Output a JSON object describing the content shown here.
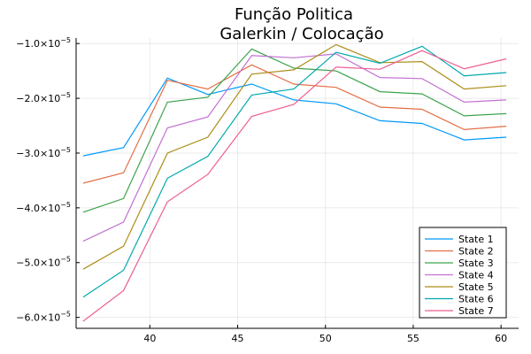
{
  "chart_data": {
    "type": "line",
    "title_lines": [
      "Função Politica",
      "Galerkin / Colocação"
    ],
    "xlabel": "",
    "ylabel": "",
    "xlim": [
      35.8,
      61.0
    ],
    "ylim": [
      -6.2e-05,
      -9e-06
    ],
    "x_ticks": [
      40,
      45,
      50,
      55,
      60
    ],
    "x_tick_labels": [
      "40",
      "45",
      "50",
      "55",
      "60"
    ],
    "y_ticks": [
      -6e-05,
      -5e-05,
      -4e-05,
      -3e-05,
      -2e-05,
      -1e-05
    ],
    "y_tick_labels": [
      {
        "mantissa": "−6.0×10",
        "exp": "−5"
      },
      {
        "mantissa": "−5.0×10",
        "exp": "−5"
      },
      {
        "mantissa": "−4.0×10",
        "exp": "−5"
      },
      {
        "mantissa": "−3.0×10",
        "exp": "−5"
      },
      {
        "mantissa": "−2.0×10",
        "exp": "−5"
      },
      {
        "mantissa": "−1.0×10",
        "exp": "−5"
      }
    ],
    "grid": true,
    "legend_position": "bottom-right",
    "x": [
      36.2,
      38.5,
      41.0,
      43.3,
      45.8,
      48.2,
      50.6,
      53.1,
      55.5,
      57.9,
      60.3
    ],
    "series": [
      {
        "name": "State 1",
        "color": "#009AFA",
        "values": [
          -3.05e-05,
          -2.9e-05,
          -1.63e-05,
          -1.93e-05,
          -1.74e-05,
          -2.03e-05,
          -2.1e-05,
          -2.41e-05,
          -2.46e-05,
          -2.76e-05,
          -2.71e-05
        ]
      },
      {
        "name": "State 2",
        "color": "#E36F47",
        "values": [
          -3.55e-05,
          -3.36e-05,
          -1.67e-05,
          -1.83e-05,
          -1.39e-05,
          -1.74e-05,
          -1.8e-05,
          -2.16e-05,
          -2.2e-05,
          -2.57e-05,
          -2.51e-05
        ]
      },
      {
        "name": "State 3",
        "color": "#3EA44E",
        "values": [
          -4.08e-05,
          -3.83e-05,
          -2.07e-05,
          -1.98e-05,
          -1.1e-05,
          -1.45e-05,
          -1.5e-05,
          -1.88e-05,
          -1.92e-05,
          -2.32e-05,
          -2.28e-05
        ]
      },
      {
        "name": "State 4",
        "color": "#C371D2",
        "values": [
          -4.61e-05,
          -4.26e-05,
          -2.54e-05,
          -2.34e-05,
          -1.22e-05,
          -1.26e-05,
          -1.19e-05,
          -1.62e-05,
          -1.64e-05,
          -2.07e-05,
          -2.03e-05
        ]
      },
      {
        "name": "State 5",
        "color": "#AC8D18",
        "values": [
          -5.12e-05,
          -4.7e-05,
          -3e-05,
          -2.71e-05,
          -1.56e-05,
          -1.48e-05,
          -1.02e-05,
          -1.35e-05,
          -1.33e-05,
          -1.83e-05,
          -1.77e-05
        ]
      },
      {
        "name": "State 6",
        "color": "#00A9AD",
        "values": [
          -5.63e-05,
          -5.14e-05,
          -3.46e-05,
          -3.06e-05,
          -1.94e-05,
          -1.83e-05,
          -1.16e-05,
          -1.36e-05,
          -1.05e-05,
          -1.59e-05,
          -1.53e-05
        ]
      },
      {
        "name": "State 7",
        "color": "#ED5E93",
        "values": [
          -6.07e-05,
          -5.51e-05,
          -3.89e-05,
          -3.39e-05,
          -2.33e-05,
          -2.11e-05,
          -1.43e-05,
          -1.47e-05,
          -1.13e-05,
          -1.46e-05,
          -1.28e-05
        ]
      }
    ]
  }
}
